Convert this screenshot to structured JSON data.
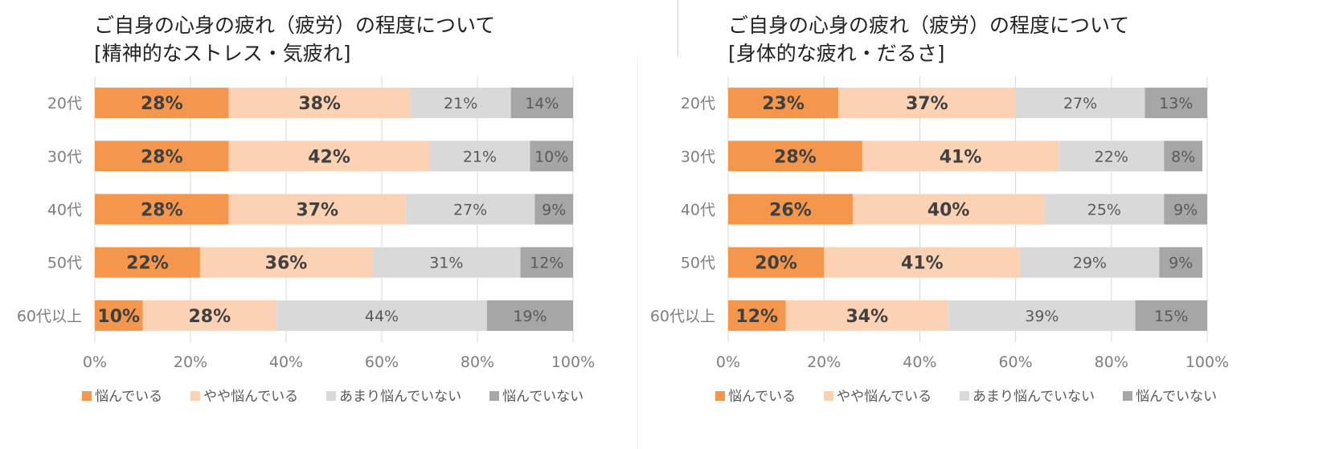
{
  "chart_data": [
    {
      "type": "bar",
      "orientation": "horizontal",
      "stacked": "percent",
      "title": "ご自身の心身の疲れ（疲労）の程度について",
      "subtitle": "[精神的なストレス・気疲れ]",
      "categories": [
        "20代",
        "30代",
        "40代",
        "50代",
        "60代以上"
      ],
      "series": [
        {
          "name": "悩んでいる",
          "color": "#f4964b",
          "values": [
            28,
            28,
            28,
            22,
            10
          ]
        },
        {
          "name": "やや悩んでいる",
          "color": "#fbd3b4",
          "values": [
            38,
            42,
            37,
            36,
            28
          ]
        },
        {
          "name": "あまり悩んでいない",
          "color": "#d9d9d9",
          "values": [
            21,
            21,
            27,
            31,
            44
          ]
        },
        {
          "name": "悩んでいない",
          "color": "#a6a6a6",
          "values": [
            14,
            10,
            9,
            12,
            19
          ]
        }
      ],
      "xlim": [
        0,
        100
      ],
      "xticks": [
        "0%",
        "20%",
        "40%",
        "60%",
        "80%",
        "100%"
      ],
      "grid": true,
      "legend": "bottom"
    },
    {
      "type": "bar",
      "orientation": "horizontal",
      "stacked": "percent",
      "title": "ご自身の心身の疲れ（疲労）の程度について",
      "subtitle": "[身体的な疲れ・だるさ]",
      "categories": [
        "20代",
        "30代",
        "40代",
        "50代",
        "60代以上"
      ],
      "series": [
        {
          "name": "悩んでいる",
          "color": "#f4964b",
          "values": [
            23,
            28,
            26,
            20,
            12
          ]
        },
        {
          "name": "やや悩んでいる",
          "color": "#fbd3b4",
          "values": [
            37,
            41,
            40,
            41,
            34
          ]
        },
        {
          "name": "あまり悩んでいない",
          "color": "#d9d9d9",
          "values": [
            27,
            22,
            25,
            29,
            39
          ]
        },
        {
          "name": "悩んでいない",
          "color": "#a6a6a6",
          "values": [
            13,
            8,
            9,
            9,
            15
          ]
        }
      ],
      "xlim": [
        0,
        100
      ],
      "xticks": [
        "0%",
        "20%",
        "40%",
        "60%",
        "80%",
        "100%"
      ],
      "grid": true,
      "legend": "bottom"
    }
  ]
}
